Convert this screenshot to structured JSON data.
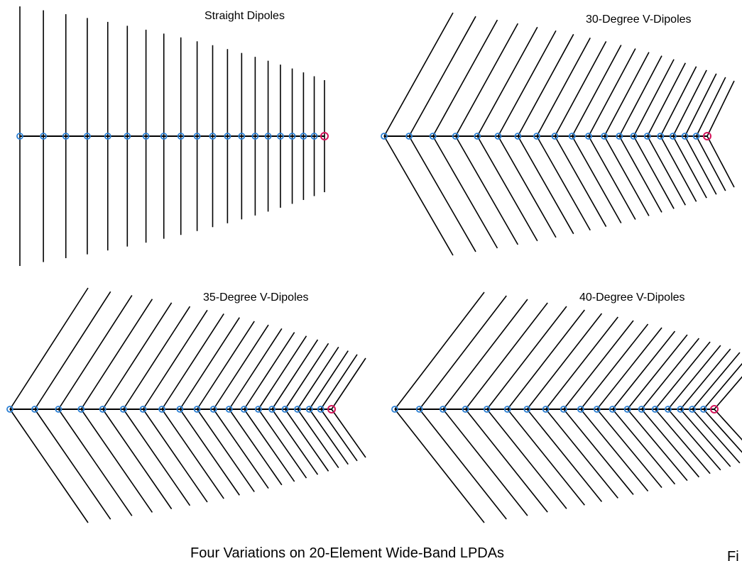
{
  "figure": {
    "caption": "Four Variations on 20-Element Wide-Band LPDAs",
    "corner_label": "Fi",
    "colors": {
      "background": "#ffffff",
      "element": "#000000",
      "boom": "#000000",
      "feed_marker": "#2a7fd4",
      "source_marker": "#d4145a"
    },
    "element_count": 20,
    "panels": [
      {
        "id": "straight",
        "title": "Straight Dipoles",
        "element_style": "straight"
      },
      {
        "id": "v30",
        "title": "30-Degree V-Dipoles",
        "element_style": "v"
      },
      {
        "id": "v35",
        "title": "35-Degree V-Dipoles",
        "element_style": "v"
      },
      {
        "id": "v40",
        "title": "40-Degree V-Dipoles",
        "element_style": "v"
      }
    ]
  }
}
